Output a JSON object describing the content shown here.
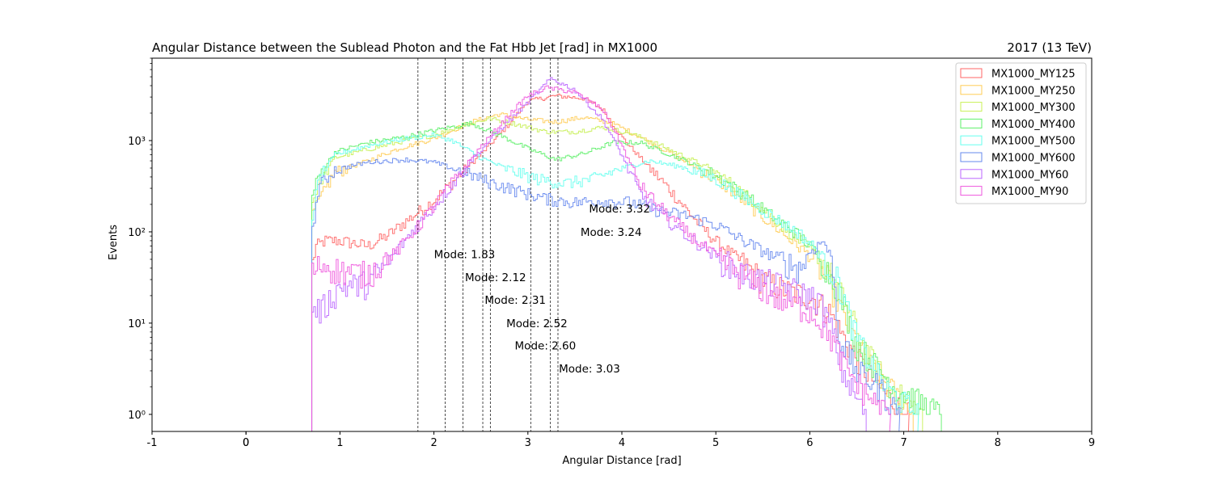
{
  "chart_data": {
    "type": "histogram-step",
    "title": "Angular Distance between the Sublead Photon and the Fat Hbb Jet [rad] in MX1000",
    "title_right": "2017 (13 TeV)",
    "xlabel": "Angular Distance [rad]",
    "ylabel": "Events",
    "xlim": [
      -1,
      9
    ],
    "ylim": [
      0.65,
      8000
    ],
    "yscale": "log",
    "xticks": [
      "-1",
      "0",
      "0",
      "1",
      "2",
      "3",
      "4",
      "5",
      "6",
      "7",
      "8",
      "9"
    ],
    "yticks": [
      {
        "value": 1,
        "label": "10⁰"
      },
      {
        "value": 10,
        "label": "10¹"
      },
      {
        "value": 100,
        "label": "10²"
      },
      {
        "value": 1000,
        "label": "10³"
      }
    ],
    "grid": false,
    "legend_position": "top-right",
    "mode_lines": [
      1.83,
      2.12,
      2.31,
      2.52,
      2.6,
      3.03,
      3.24,
      3.32
    ],
    "annotations": [
      {
        "text": "Mode: 3.32",
        "x": 3.65,
        "y": 180
      },
      {
        "text": "Mode: 3.24",
        "x": 3.56,
        "y": 100
      },
      {
        "text": "Mode: 1.83",
        "x": 2.0,
        "y": 57
      },
      {
        "text": "Mode: 2.12",
        "x": 2.33,
        "y": 32
      },
      {
        "text": "Mode: 2.31",
        "x": 2.54,
        "y": 18
      },
      {
        "text": "Mode: 2.52",
        "x": 2.77,
        "y": 10
      },
      {
        "text": "Mode: 2.60",
        "x": 2.86,
        "y": 5.7
      },
      {
        "text": "Mode: 3.03",
        "x": 3.33,
        "y": 3.2
      }
    ],
    "series": [
      {
        "name": "MX1000_MY125",
        "color": "#ff6666",
        "start": 0.7,
        "end": 7.05,
        "points": [
          [
            0.7,
            40
          ],
          [
            0.75,
            70
          ],
          [
            0.85,
            80
          ],
          [
            1.0,
            80
          ],
          [
            1.3,
            70
          ],
          [
            1.5,
            90
          ],
          [
            2.0,
            220
          ],
          [
            2.5,
            700
          ],
          [
            2.8,
            1500
          ],
          [
            3.0,
            2700
          ],
          [
            3.3,
            3100
          ],
          [
            3.6,
            2900
          ],
          [
            3.8,
            2200
          ],
          [
            4.0,
            1100
          ],
          [
            4.2,
            650
          ],
          [
            4.5,
            300
          ],
          [
            4.8,
            130
          ],
          [
            5.0,
            80
          ],
          [
            5.3,
            45
          ],
          [
            5.5,
            30
          ],
          [
            5.8,
            22
          ],
          [
            6.0,
            20
          ],
          [
            6.2,
            14
          ],
          [
            6.4,
            6
          ],
          [
            6.6,
            3
          ],
          [
            6.85,
            1.5
          ],
          [
            7.05,
            1
          ]
        ]
      },
      {
        "name": "MX1000_MY250",
        "color": "#ffcc55",
        "start": 0.7,
        "end": 7.1,
        "points": [
          [
            0.7,
            150
          ],
          [
            0.78,
            220
          ],
          [
            0.95,
            450
          ],
          [
            1.3,
            600
          ],
          [
            1.6,
            800
          ],
          [
            2.0,
            1050
          ],
          [
            2.4,
            1600
          ],
          [
            2.7,
            1950
          ],
          [
            3.0,
            1700
          ],
          [
            3.3,
            1600
          ],
          [
            3.6,
            1800
          ],
          [
            3.9,
            1550
          ],
          [
            4.2,
            1100
          ],
          [
            4.5,
            750
          ],
          [
            4.8,
            500
          ],
          [
            5.1,
            320
          ],
          [
            5.4,
            180
          ],
          [
            5.7,
            100
          ],
          [
            6.0,
            55
          ],
          [
            6.2,
            30
          ],
          [
            6.4,
            10
          ],
          [
            6.6,
            4
          ],
          [
            6.85,
            2
          ],
          [
            7.1,
            1
          ]
        ]
      },
      {
        "name": "MX1000_MY300",
        "color": "#c8f056",
        "start": 0.7,
        "end": 7.2,
        "points": [
          [
            0.7,
            200
          ],
          [
            0.78,
            350
          ],
          [
            0.95,
            650
          ],
          [
            1.3,
            800
          ],
          [
            1.7,
            1000
          ],
          [
            2.0,
            1150
          ],
          [
            2.3,
            1450
          ],
          [
            2.6,
            1750
          ],
          [
            2.9,
            1500
          ],
          [
            3.2,
            1250
          ],
          [
            3.5,
            1250
          ],
          [
            3.8,
            1400
          ],
          [
            4.1,
            1200
          ],
          [
            4.4,
            900
          ],
          [
            4.8,
            580
          ],
          [
            5.1,
            380
          ],
          [
            5.4,
            220
          ],
          [
            5.7,
            120
          ],
          [
            6.0,
            65
          ],
          [
            6.2,
            40
          ],
          [
            6.4,
            15
          ],
          [
            6.6,
            5
          ],
          [
            6.85,
            2
          ],
          [
            7.2,
            1
          ]
        ]
      },
      {
        "name": "MX1000_MY400",
        "color": "#5ef06a",
        "start": 0.7,
        "end": 7.4,
        "points": [
          [
            0.7,
            240
          ],
          [
            0.78,
            420
          ],
          [
            0.95,
            750
          ],
          [
            1.3,
            950
          ],
          [
            1.7,
            1100
          ],
          [
            2.1,
            1350
          ],
          [
            2.4,
            1550
          ],
          [
            2.7,
            1150
          ],
          [
            3.0,
            820
          ],
          [
            3.3,
            620
          ],
          [
            3.6,
            720
          ],
          [
            3.9,
            950
          ],
          [
            4.2,
            950
          ],
          [
            4.6,
            650
          ],
          [
            5.0,
            420
          ],
          [
            5.3,
            260
          ],
          [
            5.6,
            150
          ],
          [
            5.9,
            90
          ],
          [
            6.1,
            55
          ],
          [
            6.3,
            25
          ],
          [
            6.5,
            6
          ],
          [
            6.9,
            2
          ],
          [
            7.4,
            1
          ]
        ]
      },
      {
        "name": "MX1000_MY500",
        "color": "#66ffee",
        "start": 0.7,
        "end": 7.15,
        "points": [
          [
            0.7,
            130
          ],
          [
            0.78,
            380
          ],
          [
            0.95,
            700
          ],
          [
            1.3,
            880
          ],
          [
            1.7,
            1050
          ],
          [
            2.0,
            1150
          ],
          [
            2.2,
            1000
          ],
          [
            2.5,
            650
          ],
          [
            2.8,
            480
          ],
          [
            3.1,
            380
          ],
          [
            3.4,
            340
          ],
          [
            3.7,
            380
          ],
          [
            4.0,
            500
          ],
          [
            4.3,
            600
          ],
          [
            4.7,
            500
          ],
          [
            5.0,
            380
          ],
          [
            5.3,
            240
          ],
          [
            5.6,
            150
          ],
          [
            5.9,
            95
          ],
          [
            6.1,
            60
          ],
          [
            6.3,
            30
          ],
          [
            6.5,
            7
          ],
          [
            6.8,
            2
          ],
          [
            7.15,
            1
          ]
        ]
      },
      {
        "name": "MX1000_MY600",
        "color": "#6688ee",
        "start": 0.7,
        "end": 6.95,
        "points": [
          [
            0.7,
            90
          ],
          [
            0.78,
            320
          ],
          [
            0.95,
            480
          ],
          [
            1.3,
            580
          ],
          [
            1.7,
            620
          ],
          [
            2.0,
            580
          ],
          [
            2.3,
            460
          ],
          [
            2.6,
            350
          ],
          [
            2.9,
            280
          ],
          [
            3.2,
            230
          ],
          [
            3.5,
            210
          ],
          [
            3.8,
            220
          ],
          [
            4.1,
            210
          ],
          [
            4.4,
            170
          ],
          [
            4.7,
            150
          ],
          [
            5.0,
            120
          ],
          [
            5.3,
            80
          ],
          [
            5.6,
            55
          ],
          [
            5.9,
            40
          ],
          [
            6.0,
            60
          ],
          [
            6.15,
            80
          ],
          [
            6.25,
            45
          ],
          [
            6.3,
            8
          ],
          [
            6.5,
            3
          ],
          [
            6.75,
            2
          ],
          [
            6.95,
            1
          ]
        ]
      },
      {
        "name": "MX1000_MY60",
        "color": "#bb66ff",
        "start": 0.7,
        "end": 6.6,
        "points": [
          [
            0.7,
            15
          ],
          [
            0.8,
            14
          ],
          [
            1.0,
            25
          ],
          [
            1.3,
            28
          ],
          [
            1.5,
            45
          ],
          [
            1.8,
            110
          ],
          [
            2.1,
            250
          ],
          [
            2.4,
            600
          ],
          [
            2.7,
            1300
          ],
          [
            3.0,
            2600
          ],
          [
            3.25,
            4800
          ],
          [
            3.5,
            3600
          ],
          [
            3.8,
            1700
          ],
          [
            4.0,
            700
          ],
          [
            4.2,
            260
          ],
          [
            4.4,
            160
          ],
          [
            4.7,
            90
          ],
          [
            5.0,
            55
          ],
          [
            5.3,
            35
          ],
          [
            5.6,
            28
          ],
          [
            5.9,
            22
          ],
          [
            6.1,
            18
          ],
          [
            6.25,
            8
          ],
          [
            6.35,
            3
          ],
          [
            6.5,
            1.5
          ],
          [
            6.6,
            1
          ]
        ]
      },
      {
        "name": "MX1000_MY90",
        "color": "#ee55dd",
        "start": 0.7,
        "end": 6.85,
        "points": [
          [
            0.7,
            35
          ],
          [
            0.8,
            45
          ],
          [
            1.0,
            38
          ],
          [
            1.3,
            35
          ],
          [
            1.6,
            60
          ],
          [
            1.9,
            140
          ],
          [
            2.2,
            350
          ],
          [
            2.5,
            850
          ],
          [
            2.8,
            1900
          ],
          [
            3.0,
            3100
          ],
          [
            3.2,
            3800
          ],
          [
            3.5,
            3400
          ],
          [
            3.8,
            2200
          ],
          [
            4.0,
            900
          ],
          [
            4.2,
            320
          ],
          [
            4.5,
            150
          ],
          [
            4.8,
            80
          ],
          [
            5.1,
            45
          ],
          [
            5.4,
            28
          ],
          [
            5.7,
            18
          ],
          [
            6.0,
            14
          ],
          [
            6.2,
            8
          ],
          [
            6.4,
            3
          ],
          [
            6.65,
            1.5
          ],
          [
            6.85,
            1
          ]
        ]
      }
    ]
  }
}
